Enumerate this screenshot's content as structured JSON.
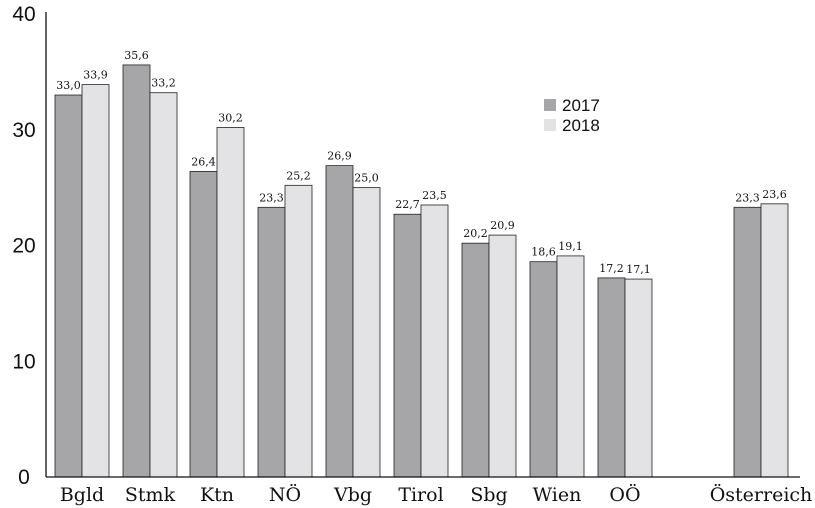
{
  "chart_data": {
    "type": "bar",
    "categories": [
      "Bgld",
      "Stmk",
      "Ktn",
      "NÖ",
      "Vbg",
      "Tirol",
      "Sbg",
      "Wien",
      "OÖ",
      "Österreich"
    ],
    "series": [
      {
        "name": "2017",
        "color": "#a6a6a9",
        "values": [
          33.0,
          35.6,
          26.4,
          23.3,
          26.9,
          22.7,
          20.2,
          18.6,
          17.2,
          23.3
        ],
        "labels": [
          "33,0",
          "35,6",
          "26,4",
          "23,3",
          "26,9",
          "22,7",
          "20,2",
          "18,6",
          "17,2",
          "23,3"
        ]
      },
      {
        "name": "2018",
        "color": "#e3e3e6",
        "values": [
          33.9,
          33.2,
          30.2,
          25.2,
          25.0,
          23.5,
          20.9,
          19.1,
          17.1,
          23.6
        ],
        "labels": [
          "33,9",
          "33,2",
          "30,2",
          "25,2",
          "25,0",
          "23,5",
          "20,9",
          "19,1",
          "17,1",
          "23,6"
        ]
      }
    ],
    "ylim": [
      0,
      40
    ],
    "yticks": [
      0,
      10,
      20,
      30,
      40
    ],
    "title": "",
    "xlabel": "",
    "ylabel": "",
    "grid": false,
    "legend_position": "upper-center-right"
  }
}
